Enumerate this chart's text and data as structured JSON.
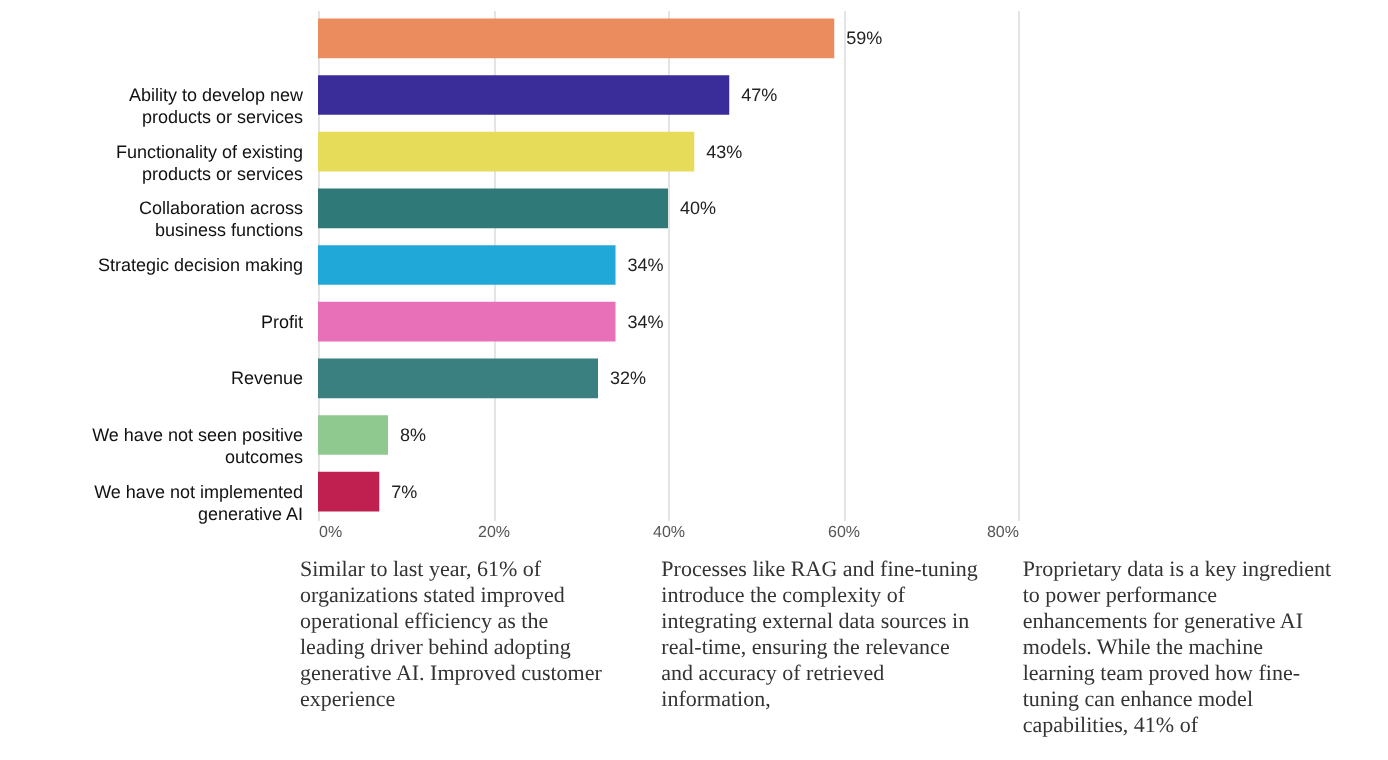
{
  "chart_data": {
    "type": "bar",
    "orientation": "horizontal",
    "categories": [
      null,
      "Ability to develop new products or services",
      "Functionality of existing products or services",
      "Collaboration across business functions",
      "Strategic decision making",
      "Profit",
      "Revenue",
      "We have not seen positive outcomes",
      "We have not implemented generative AI"
    ],
    "values": [
      59,
      47,
      43,
      40,
      34,
      34,
      32,
      8,
      7
    ],
    "value_labels": [
      "59%",
      "47%",
      "43%",
      "40%",
      "34%",
      "34%",
      "32%",
      "8%",
      "7%"
    ],
    "colors": [
      "#eb8c5f",
      "#3a2d9a",
      "#e6dc5a",
      "#2f7a78",
      "#1fa8d8",
      "#e870b8",
      "#3a8080",
      "#8fc98f",
      "#c0204f"
    ],
    "xlim": [
      0,
      80
    ],
    "xticks": [
      {
        "value": 0,
        "label": "0%"
      },
      {
        "value": 20,
        "label": "20%"
      },
      {
        "value": 40,
        "label": "40%"
      },
      {
        "value": 60,
        "label": "60%"
      },
      {
        "value": 80,
        "label": "80%"
      }
    ],
    "grid": "x",
    "annotations": [
      "Similar to last year, 61% of organizations stated improved operational efficiency as the leading driver behind adopting generative AI. Improved customer experience",
      "Processes like RAG and fine-tuning introduce the complexity of integrating external data sources in real-time, ensuring the relevance and accuracy of retrieved information,",
      "Proprietary data is a key ingredient to power performance enhancements for generative AI models. While the machine learning team proved how fine-tuning can enhance model capabilities, 41% of"
    ]
  }
}
